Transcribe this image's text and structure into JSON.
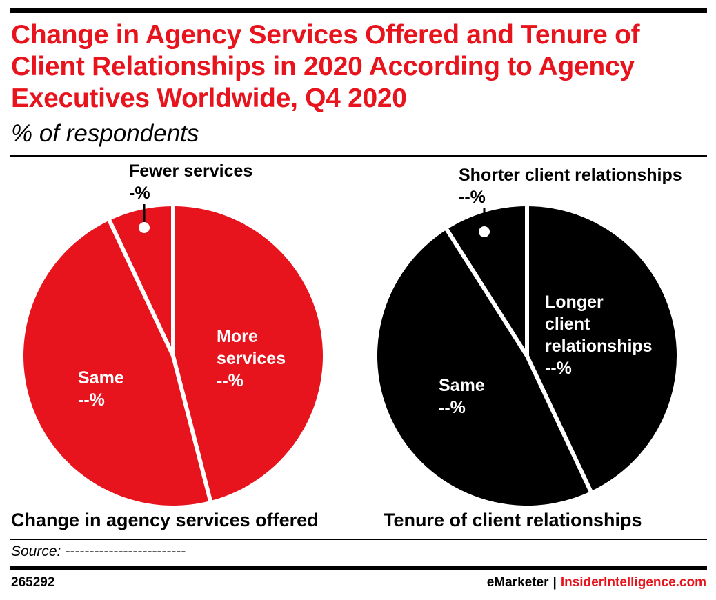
{
  "title": "Change in Agency Services Offered and Tenure of Client Relationships in 2020 According to Agency Executives Worldwide, Q4 2020",
  "subtitle": "% of respondents",
  "source": "Source: -------------------------",
  "chart_id": "265292",
  "brand": {
    "primary": "eMarketer",
    "separator": "|",
    "secondary": "InsiderIntelligence.com"
  },
  "colors": {
    "accent": "#e8141d",
    "dark": "#000000",
    "background": "#ffffff"
  },
  "chart_data": [
    {
      "type": "pie",
      "title": "Change in agency services offered",
      "color": "#e8141d",
      "slices": [
        {
          "name": "More services",
          "lines": [
            "More",
            "services",
            "--%"
          ],
          "value": 46,
          "placement": "inside"
        },
        {
          "name": "Same",
          "lines": [
            "Same",
            "--%"
          ],
          "value": 47,
          "placement": "inside"
        },
        {
          "name": "Fewer services",
          "lines": [
            "Fewer services",
            "-%"
          ],
          "value": 7,
          "placement": "callout"
        }
      ]
    },
    {
      "type": "pie",
      "title": "Tenure of client relationships",
      "color": "#000000",
      "slices": [
        {
          "name": "Longer client relationships",
          "lines": [
            "Longer",
            "client",
            "relationships",
            "--%"
          ],
          "value": 43,
          "placement": "inside"
        },
        {
          "name": "Same",
          "lines": [
            "Same",
            "--%"
          ],
          "value": 48,
          "placement": "inside"
        },
        {
          "name": "Shorter client relationships",
          "lines": [
            "Shorter client relationships",
            "--%"
          ],
          "value": 9,
          "placement": "callout"
        }
      ]
    }
  ]
}
